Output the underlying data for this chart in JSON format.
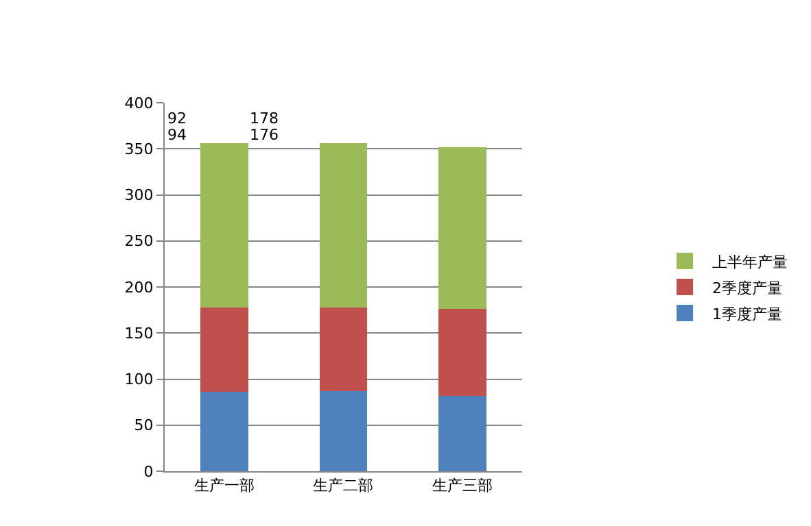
{
  "chart_data": {
    "type": "bar",
    "stacked": true,
    "categories": [
      "生产一部",
      "生产二部",
      "生产三部"
    ],
    "series": [
      {
        "name": "1季度产量",
        "color": "#4f81bd",
        "values": [
          86,
          87,
          82
        ]
      },
      {
        "name": "2季度产量",
        "color": "#c0504d",
        "values": [
          92,
          91,
          94
        ]
      },
      {
        "name": "上半年产量",
        "color": "#9bbb59",
        "values": [
          178,
          178,
          176
        ]
      }
    ],
    "ylim": [
      0,
      400
    ],
    "yticks": [
      0,
      50,
      100,
      150,
      200,
      250,
      300,
      350,
      400
    ],
    "grid": "y",
    "legend": "right",
    "annotations": [
      "92",
      "178",
      "94",
      "176"
    ]
  }
}
